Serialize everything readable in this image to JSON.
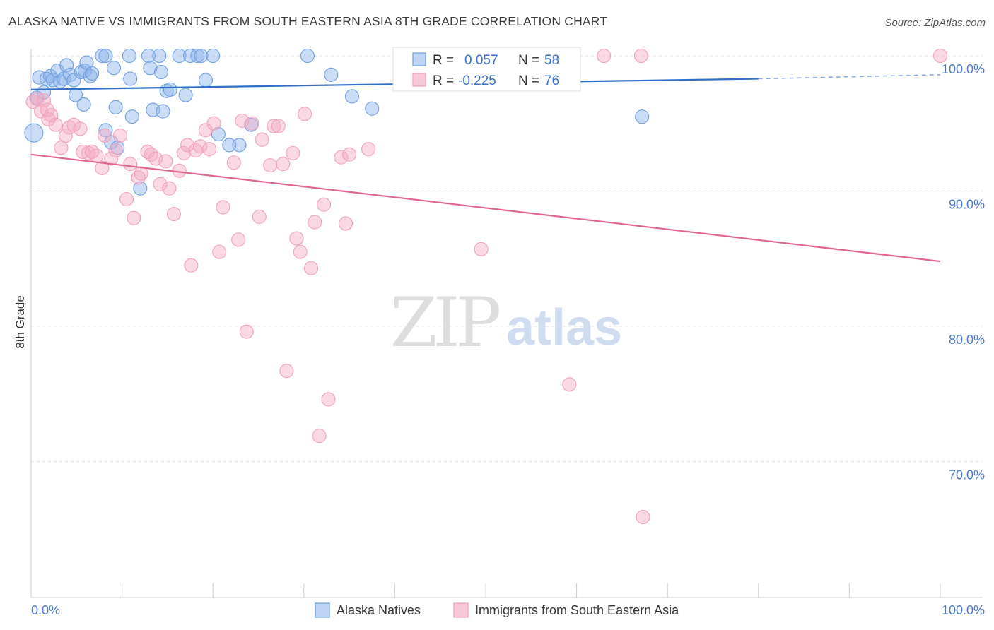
{
  "title": "ALASKA NATIVE VS IMMIGRANTS FROM SOUTH EASTERN ASIA 8TH GRADE CORRELATION CHART",
  "source": "Source: ZipAtlas.com",
  "watermark": {
    "zip": "ZIP",
    "atlas": "atlas"
  },
  "stats_box": {
    "rows": [
      {
        "r_label": "R = ",
        "r_value": "0.057",
        "n_label": "N = ",
        "n_value": "58"
      },
      {
        "r_label": "R = ",
        "r_value": "-0.225",
        "n_label": "N = ",
        "n_value": "76"
      }
    ]
  },
  "legend": {
    "items": [
      {
        "label": "Alaska Natives"
      },
      {
        "label": "Immigrants from South Eastern Asia"
      }
    ]
  },
  "chart_data": {
    "type": "scatter",
    "ylabel": "8th Grade",
    "xlabel": "",
    "xlim": [
      0,
      100
    ],
    "ylim": [
      60,
      100.5
    ],
    "x_tick_labels": [
      {
        "value": 0,
        "label": "0.0%"
      },
      {
        "value": 100,
        "label": "100.0%"
      }
    ],
    "y_tick_labels": [
      {
        "value": 100,
        "label": "100.0%"
      },
      {
        "value": 90,
        "label": "90.0%"
      },
      {
        "value": 80,
        "label": "80.0%"
      },
      {
        "value": 70,
        "label": "70.0%"
      }
    ],
    "grid": true,
    "colors": {
      "blue": "#6f9fe0",
      "blue_line": "#2f6fc9",
      "pink": "#f0a0bb",
      "pink_line": "#e06690",
      "axis_text": "#4a7bc8"
    },
    "series": [
      {
        "name": "Alaska Natives",
        "color": "#6f9fe0",
        "trend": {
          "x0": 0,
          "y0": 97.5,
          "x1": 80,
          "y1": 98.3,
          "dashed_to": 100,
          "dashed_y": 98.6
        },
        "points": [
          [
            0.3,
            94.3
          ],
          [
            0.6,
            96.9
          ],
          [
            0.9,
            98.4
          ],
          [
            1.4,
            97.3
          ],
          [
            1.7,
            98.3
          ],
          [
            2.1,
            98.5
          ],
          [
            2.4,
            98.2
          ],
          [
            2.9,
            98.9
          ],
          [
            3.2,
            98.1
          ],
          [
            3.6,
            98.3
          ],
          [
            3.9,
            99.3
          ],
          [
            4.3,
            98.6
          ],
          [
            4.7,
            98.2
          ],
          [
            4.9,
            97.1
          ],
          [
            5.5,
            98.8
          ],
          [
            5.9,
            98.9
          ],
          [
            6.1,
            99.5
          ],
          [
            5.8,
            96.4
          ],
          [
            6.5,
            98.5
          ],
          [
            6.7,
            98.7
          ],
          [
            7.8,
            100.0
          ],
          [
            8.2,
            100.0
          ],
          [
            8.2,
            94.5
          ],
          [
            8.8,
            93.6
          ],
          [
            9.1,
            99.1
          ],
          [
            9.3,
            96.2
          ],
          [
            9.5,
            93.2
          ],
          [
            10.8,
            100.0
          ],
          [
            10.9,
            98.3
          ],
          [
            11.1,
            95.5
          ],
          [
            12.9,
            100.0
          ],
          [
            13.1,
            99.1
          ],
          [
            13.4,
            96.0
          ],
          [
            14.1,
            100.0
          ],
          [
            14.3,
            98.8
          ],
          [
            14.5,
            95.9
          ],
          [
            14.9,
            97.4
          ],
          [
            15.3,
            97.5
          ],
          [
            16.3,
            100.0
          ],
          [
            17.0,
            97.1
          ],
          [
            17.5,
            100.0
          ],
          [
            18.3,
            100.0
          ],
          [
            18.7,
            100.0
          ],
          [
            19.2,
            98.2
          ],
          [
            20.0,
            100.0
          ],
          [
            20.6,
            94.2
          ],
          [
            21.8,
            93.4
          ],
          [
            22.9,
            93.4
          ],
          [
            24.2,
            94.9
          ],
          [
            30.4,
            100.0
          ],
          [
            33.0,
            98.6
          ],
          [
            35.3,
            97.0
          ],
          [
            37.5,
            96.1
          ],
          [
            41.1,
            100.0
          ],
          [
            42.3,
            100.0
          ],
          [
            45.0,
            100.0
          ],
          [
            67.2,
            95.5
          ],
          [
            12.0,
            90.2
          ]
        ]
      },
      {
        "name": "Immigrants from South Eastern Asia",
        "color": "#f0a0bb",
        "trend": {
          "x0": 0,
          "y0": 92.7,
          "x1": 100,
          "y1": 84.8
        },
        "points": [
          [
            0.2,
            96.6
          ],
          [
            0.7,
            96.8
          ],
          [
            1.1,
            95.9
          ],
          [
            1.4,
            96.7
          ],
          [
            1.8,
            96.0
          ],
          [
            1.9,
            95.3
          ],
          [
            2.2,
            95.6
          ],
          [
            2.7,
            94.9
          ],
          [
            3.3,
            93.2
          ],
          [
            3.8,
            94.1
          ],
          [
            4.2,
            94.7
          ],
          [
            4.7,
            94.9
          ],
          [
            5.4,
            94.6
          ],
          [
            5.7,
            92.9
          ],
          [
            6.3,
            92.8
          ],
          [
            6.7,
            92.9
          ],
          [
            7.2,
            92.6
          ],
          [
            7.8,
            91.7
          ],
          [
            8.1,
            94.1
          ],
          [
            8.8,
            92.4
          ],
          [
            9.3,
            93.0
          ],
          [
            9.8,
            94.1
          ],
          [
            10.5,
            89.4
          ],
          [
            10.9,
            92.0
          ],
          [
            11.3,
            88.0
          ],
          [
            11.8,
            91.0
          ],
          [
            12.1,
            91.3
          ],
          [
            12.8,
            92.9
          ],
          [
            13.2,
            92.7
          ],
          [
            13.7,
            92.4
          ],
          [
            14.2,
            90.5
          ],
          [
            14.8,
            92.2
          ],
          [
            15.2,
            90.2
          ],
          [
            15.7,
            88.3
          ],
          [
            16.3,
            91.5
          ],
          [
            16.8,
            92.8
          ],
          [
            17.2,
            93.4
          ],
          [
            17.6,
            84.5
          ],
          [
            18.1,
            93.0
          ],
          [
            18.6,
            93.3
          ],
          [
            19.2,
            94.5
          ],
          [
            19.6,
            93.1
          ],
          [
            20.1,
            95.0
          ],
          [
            20.7,
            85.5
          ],
          [
            21.1,
            88.8
          ],
          [
            22.3,
            92.1
          ],
          [
            22.8,
            86.4
          ],
          [
            23.2,
            95.2
          ],
          [
            23.7,
            79.6
          ],
          [
            24.3,
            95.0
          ],
          [
            25.1,
            88.1
          ],
          [
            25.4,
            93.8
          ],
          [
            26.3,
            91.9
          ],
          [
            26.7,
            94.8
          ],
          [
            27.2,
            94.8
          ],
          [
            27.7,
            92.0
          ],
          [
            28.1,
            76.7
          ],
          [
            28.8,
            92.8
          ],
          [
            29.2,
            86.5
          ],
          [
            29.6,
            85.5
          ],
          [
            30.1,
            95.7
          ],
          [
            30.8,
            84.3
          ],
          [
            31.2,
            87.7
          ],
          [
            31.7,
            71.9
          ],
          [
            32.2,
            89.0
          ],
          [
            32.7,
            74.6
          ],
          [
            34.1,
            92.5
          ],
          [
            34.6,
            87.6
          ],
          [
            35.0,
            92.7
          ],
          [
            37.1,
            93.1
          ],
          [
            49.5,
            85.7
          ],
          [
            59.2,
            75.7
          ],
          [
            63.0,
            100.0
          ],
          [
            67.1,
            100.0
          ],
          [
            67.3,
            65.9
          ],
          [
            100.0,
            100.0
          ]
        ]
      }
    ]
  }
}
